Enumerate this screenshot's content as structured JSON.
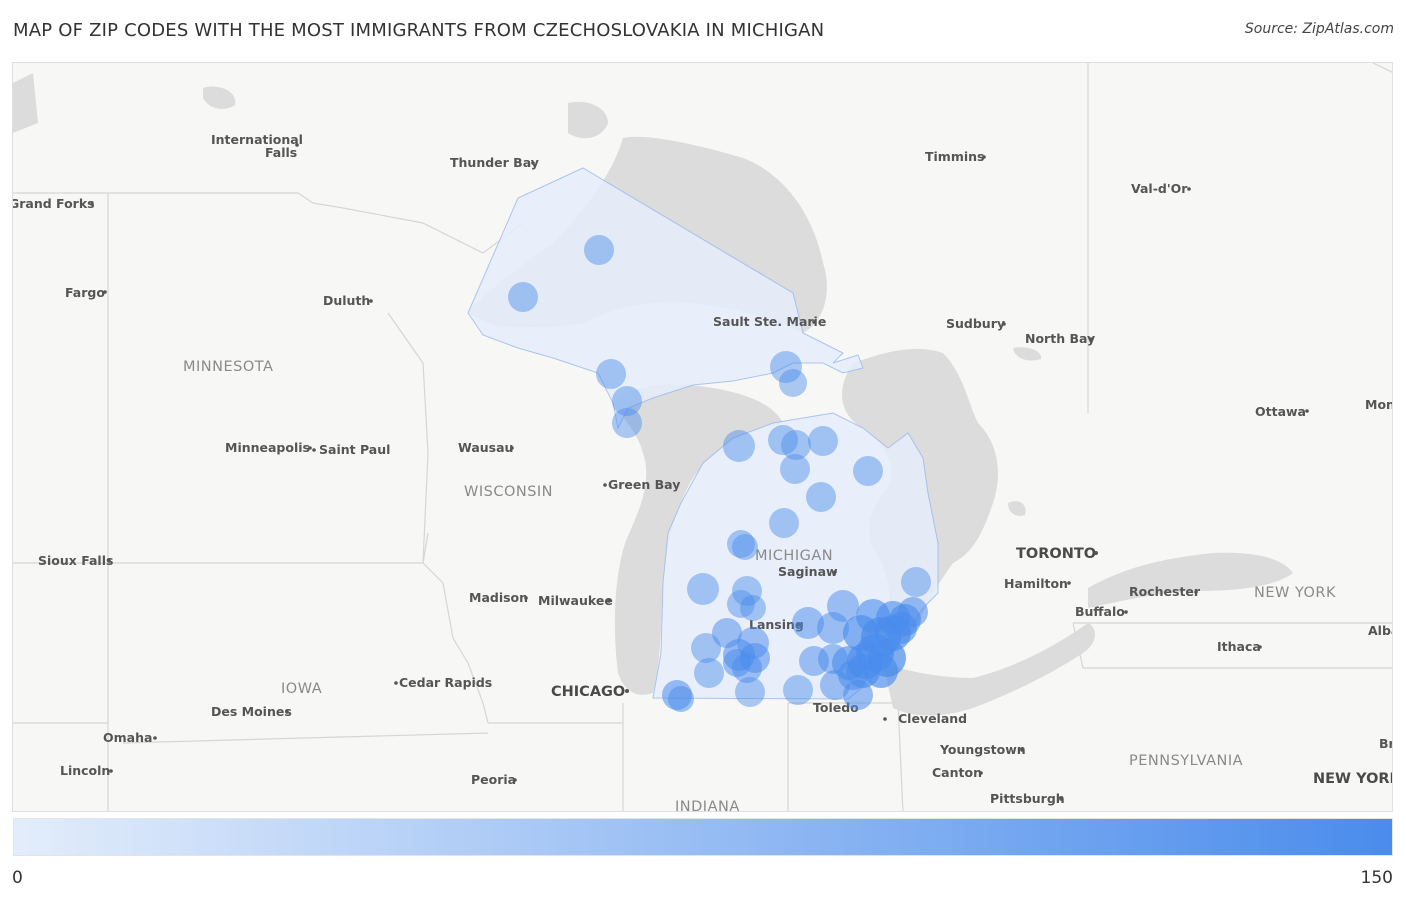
{
  "header": {
    "title": "MAP OF ZIP CODES WITH THE MOST IMMIGRANTS FROM CZECHOSLOVAKIA IN MICHIGAN",
    "source": "Source: ZipAtlas.com"
  },
  "map": {
    "state_labels": [
      {
        "id": "minnesota",
        "text": "MINNESOTA"
      },
      {
        "id": "wisconsin",
        "text": "WISCONSIN"
      },
      {
        "id": "michigan",
        "text": "MICHIGAN"
      },
      {
        "id": "iowa",
        "text": "IOWA"
      },
      {
        "id": "indiana",
        "text": "INDIANA"
      },
      {
        "id": "new-york",
        "text": "NEW YORK"
      },
      {
        "id": "pennsylvania",
        "text": "PENNSYLVANIA"
      }
    ],
    "metro_labels": [
      {
        "id": "chicago",
        "text": "CHICAGO"
      },
      {
        "id": "toronto",
        "text": "TORONTO"
      }
    ],
    "city_labels": [
      {
        "id": "international-falls-1",
        "text": "International"
      },
      {
        "id": "international-falls-2",
        "text": "Falls"
      },
      {
        "id": "thunder-bay",
        "text": "Thunder Bay"
      },
      {
        "id": "timmins",
        "text": "Timmins"
      },
      {
        "id": "val-dor",
        "text": "Val-d'Or"
      },
      {
        "id": "grand-forks",
        "text": "Grand Forks"
      },
      {
        "id": "fargo",
        "text": "Fargo"
      },
      {
        "id": "duluth",
        "text": "Duluth"
      },
      {
        "id": "sault-ste-marie",
        "text": "Sault Ste. Marie"
      },
      {
        "id": "sudbury",
        "text": "Sudbury"
      },
      {
        "id": "north-bay",
        "text": "North Bay"
      },
      {
        "id": "ottawa",
        "text": "Ottawa"
      },
      {
        "id": "montreal",
        "text": "Mon"
      },
      {
        "id": "minneapolis",
        "text": "Minneapolis"
      },
      {
        "id": "saint-paul",
        "text": "Saint Paul"
      },
      {
        "id": "wausau",
        "text": "Wausau"
      },
      {
        "id": "green-bay",
        "text": "Green Bay"
      },
      {
        "id": "saginaw",
        "text": "Saginaw"
      },
      {
        "id": "hamilton",
        "text": "Hamilton"
      },
      {
        "id": "rochester",
        "text": "Rochester"
      },
      {
        "id": "buffalo",
        "text": "Buffalo"
      },
      {
        "id": "sioux-falls",
        "text": "Sioux Falls"
      },
      {
        "id": "madison",
        "text": "Madison"
      },
      {
        "id": "milwaukee",
        "text": "Milwaukee"
      },
      {
        "id": "lansing",
        "text": "Lansing"
      },
      {
        "id": "ithaca",
        "text": "Ithaca"
      },
      {
        "id": "albany",
        "text": "Alba"
      },
      {
        "id": "cedar-rapids",
        "text": "Cedar Rapids"
      },
      {
        "id": "toledo",
        "text": "Toledo"
      },
      {
        "id": "cleveland",
        "text": "Cleveland"
      },
      {
        "id": "des-moines",
        "text": "Des Moines"
      },
      {
        "id": "omaha",
        "text": "Omaha"
      },
      {
        "id": "youngstown",
        "text": "Youngstown"
      },
      {
        "id": "lincoln",
        "text": "Lincoln"
      },
      {
        "id": "peoria",
        "text": "Peoria"
      },
      {
        "id": "canton",
        "text": "Canton"
      },
      {
        "id": "pittsburgh",
        "text": "Pittsburgh"
      },
      {
        "id": "bridgeport",
        "text": "Bri"
      },
      {
        "id": "new-york-city",
        "text": "NEW YORK"
      }
    ],
    "bubble_color": "#4a8cec",
    "highlight_color": "#dce8fa"
  },
  "legend": {
    "min_label": "0",
    "max_label": "150",
    "color_start": "#e3edfb",
    "color_end": "#4a8cec"
  }
}
